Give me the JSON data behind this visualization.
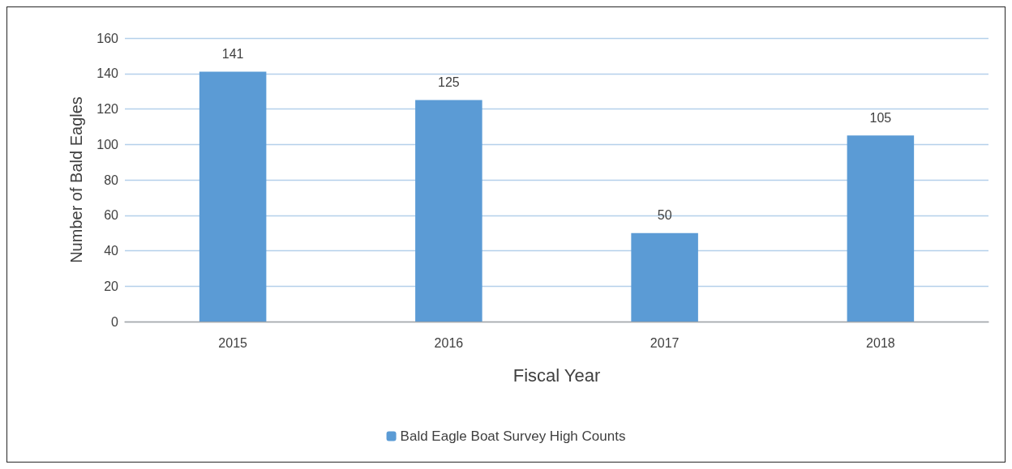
{
  "chart_data": {
    "type": "bar",
    "xlabel": "Fiscal Year",
    "ylabel": "Number of Bald Eagles",
    "categories": [
      "2015",
      "2016",
      "2017",
      "2018"
    ],
    "series": [
      {
        "name": "Bald Eagle Boat Survey High Counts",
        "color": "#5b9bd5",
        "values": [
          141,
          125,
          50,
          105
        ]
      }
    ],
    "ylim": [
      0,
      160
    ],
    "yticks": [
      0,
      20,
      40,
      60,
      80,
      100,
      120,
      140,
      160
    ],
    "grid": "y",
    "legend": "bottom",
    "data_labels": true
  }
}
